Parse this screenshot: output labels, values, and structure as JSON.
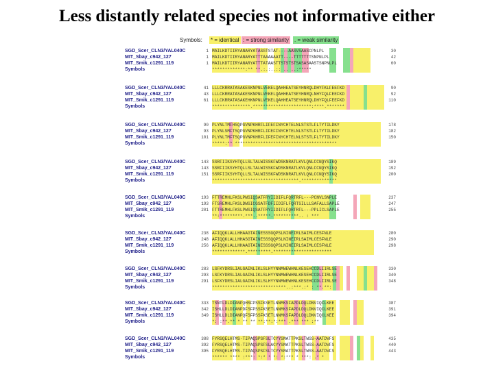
{
  "title": "Less distantly related species not informative either",
  "legend": {
    "label": "Symbols:",
    "identical": "* = identical",
    "strong": ": = strong similarity",
    "weak": ". = weak similarity"
  },
  "colors": {
    "identical": "#f8f06a",
    "strong": "#f4a6b8",
    "weak": "#86e08e",
    "name_text": "#22228a"
  },
  "blocks": [
    {
      "names": [
        "SGD_Scer_CLN3/YAL040C",
        "MIT_Sbay_c942_127",
        "MIT_Smik_c1291_119"
      ],
      "symbols_label": "Symbols",
      "starts": [
        "1",
        "1",
        "1"
      ],
      "ends": [
        "30",
        "42",
        "60"
      ],
      "seqs": [
        "MAILKDTIIRYANARYATASGTSTAT----AASVSAASCPNLPL",
        "MAILKDTIIRYANARYATTTAAAAAATT----TTTTTTTSNPNLPL",
        "MAILKDTIIRYANARYATTTATAASTTSTSTSTSASASAASTSNPNLPL"
      ],
      "cons": "*************:**  **.:.:..::      ..  ..:*****"
    },
    {
      "names": [
        "SGD_Scer_CLN3/YAL040C",
        "MIT_Sbay_c942_127",
        "MIT_Smik_c1291_119"
      ],
      "symbols_label": "Symbols",
      "starts": [
        "41",
        "43",
        "61"
      ],
      "ends": [
        "90",
        "92",
        "110"
      ],
      "seqs": [
        "LLLCKRRATASAKESKNPNLVEKELQAHHEATSEYHNRQLDHYFKLFEEFKD",
        "LLLCKRRATASAKESKNPNLVEKELQAHHEATSEYHNRQLNHYFQLFEEFKD",
        "LLLCKRRATASAKEHKNPNLVEKELQAHHEATSEYHNRQLDHYFQLFEEFKD"
      ],
      "cons": "***************.***********************:****.*******"
    },
    {
      "names": [
        "SGD_Scer_CLN3/YAL040C",
        "MIT_Sbay_c942_127",
        "MIT_Smik_c1291_119"
      ],
      "symbols_label": "Symbols",
      "starts": [
        "90",
        "93",
        "101"
      ],
      "ends": [
        "178",
        "182",
        "150"
      ],
      "seqs": [
        "PLYNLTMFHSQPGVNPKHRFLIFEFINYCHTELNLSTSTLFLTYTILDKY",
        "PLYNLSMFTSQPGVNPKHRFLIFEFINYCHTELNLSTSTLFLTYTILDKY",
        "PLYNLTMFTSQPGVNPKHRFLIFEFINYCHTELNLSTSTLFLTYTILDKY"
      ],
      "cons": "*****:** ****************************************"
    },
    {
      "names": [
        "SGD_Scer_CLN3/YAL040C",
        "MIT_Sbay_c942_127",
        "MIT_Smik_c1291_119"
      ],
      "symbols_label": "Symbols",
      "starts": [
        "143",
        "143",
        "151"
      ],
      "ends": [
        "189",
        "192",
        "200"
      ],
      "seqs": [
        "SSRFIIKSYHTQLLSLTALWISSKFWDSKNRATLKVLQNLCCNQYSIKQ",
        "SSRFIIKSYHTQLLSLTALWISSKFWDSKNRATLKVLQNLCCNQYSIKQ",
        "SSRFIIKSYHTQLLSLTALWISSKFWDSKNRATLKVLQNLCCNQYSIKQ"
      ],
      "cons": "**********************************.**************"
    },
    {
      "names": [
        "SGD_Scer_CLN3/YAL040C",
        "MIT_Sbay_c942_127",
        "MIT_Smik_c1291_119"
      ],
      "symbols_label": "Symbols",
      "starts": [
        "193",
        "193",
        "201"
      ],
      "ends": [
        "237",
        "247",
        "255"
      ],
      "seqs": [
        "FTTREMHLFKSLPWSIQSATFRYIIDIFLFQRTRFL---PCNVLSNPLE",
        "FTSREMHLFKSLDWSICGSATFDFIIDIFLFQRTSILLLSAFALLSAPLE",
        "FTTREMHLFKSLPWSIQSATFRYIIDIFLFQRTRFL---PPLICLSAPLE"
      ],
      "cons": "**:*********.***..*****.**********..     : ***"
    },
    {
      "names": [
        "SGD_Scer_CLN3/YAL040C",
        "MIT_Sbay_c942_127",
        "MIT_Smik_c1291_119"
      ],
      "symbols_label": "Symbols",
      "starts": [
        "238",
        "248",
        "256"
      ],
      "ends": [
        "280",
        "290",
        "298"
      ],
      "seqs": [
        "AFIQQKLALLHHAAGTAINESSSGQPSLNINEIRLSAIMLCESFNLE",
        "AFIQQKLALLHHASGTAINESSSQQPSLNINEIRLSAIMLCESFNLE",
        "AFIQQKLALLHHAAGTAINESSSGQPSLNINEIRLSAIMLCESFNLE"
      ],
      "cons": "*************.*********.***********************"
    },
    {
      "names": [
        "SGD_Scer_CLN3/YAL040C",
        "MIT_Sbay_c942_127",
        "MIT_Smik_c1291_119"
      ],
      "symbols_label": "Symbols",
      "starts": [
        "283",
        "293",
        "291"
      ],
      "ends": [
        "330",
        "340",
        "348"
      ],
      "seqs": [
        "LSFKYDRSLIALGAINLIKLSLHYYNNMWEWHNLKESEHCCDLIIRLSE",
        "LSFKYDRSLIALGAINLIKLSLHYYNNMWEWHNLKESEHCCDLIIRLSE",
        "LSFKYDRSLIALGAINLIKLSLHYYNNMWEWHNLKESEHCCDLIIRLSE"
      ],
      "cons": "*****************************..:***.:* :  **.**:"
    },
    {
      "names": [
        "SGD_Scer_CLN3/YAL040C",
        "MIT_Sbay_c942_127",
        "MIT_Smik_c1291_119"
      ],
      "symbols_label": "Symbols",
      "starts": [
        "333",
        "342",
        "349"
      ],
      "ends": [
        "387",
        "391",
        "394"
      ],
      "seqs": [
        "TSNTLDLDIANPQHSFPSSFKSETLNNMKSFAPDLDQLDNVIQCLKEE",
        "ISHLLDLDIANPDFSFPSSFKSETLNNMKSFAPDLDQLDNVIQCLKEE",
        "ISHLLDLDIANPQFSFPSSFKSETLNNMKSFAPDLDQLDNVIQCLKEE"
      ],
      "cons": "*: :**.** *  ** ** **:**:*:***  .*** *** :**"
    },
    {
      "names": [
        "SGD_Scer_CLN3/YAL040C",
        "MIT_Sbay_c942_127",
        "MIT_Smik_c1291_119"
      ],
      "symbols_label": "Symbols",
      "starts": [
        "388",
        "392",
        "395"
      ],
      "ends": [
        "435",
        "440",
        "443"
      ],
      "seqs": [
        "FYRSQELHTMS-TIPAQSPSFSLTCYYSMATTPKSLTWSS-AATDVFS",
        "FYRSQELHTMS-TIPAQSPSFSLACYYSMATTPKSLTWSS-AATDVFS",
        "FYRSQELHTMS-TIPAQSPSFSLTCYYSMATTPKSLTWSS-AATDVFS"
      ],
      "cons": "****** **** :***: *:*  * *:  *:*** * ***: .*  *"
    }
  ]
}
